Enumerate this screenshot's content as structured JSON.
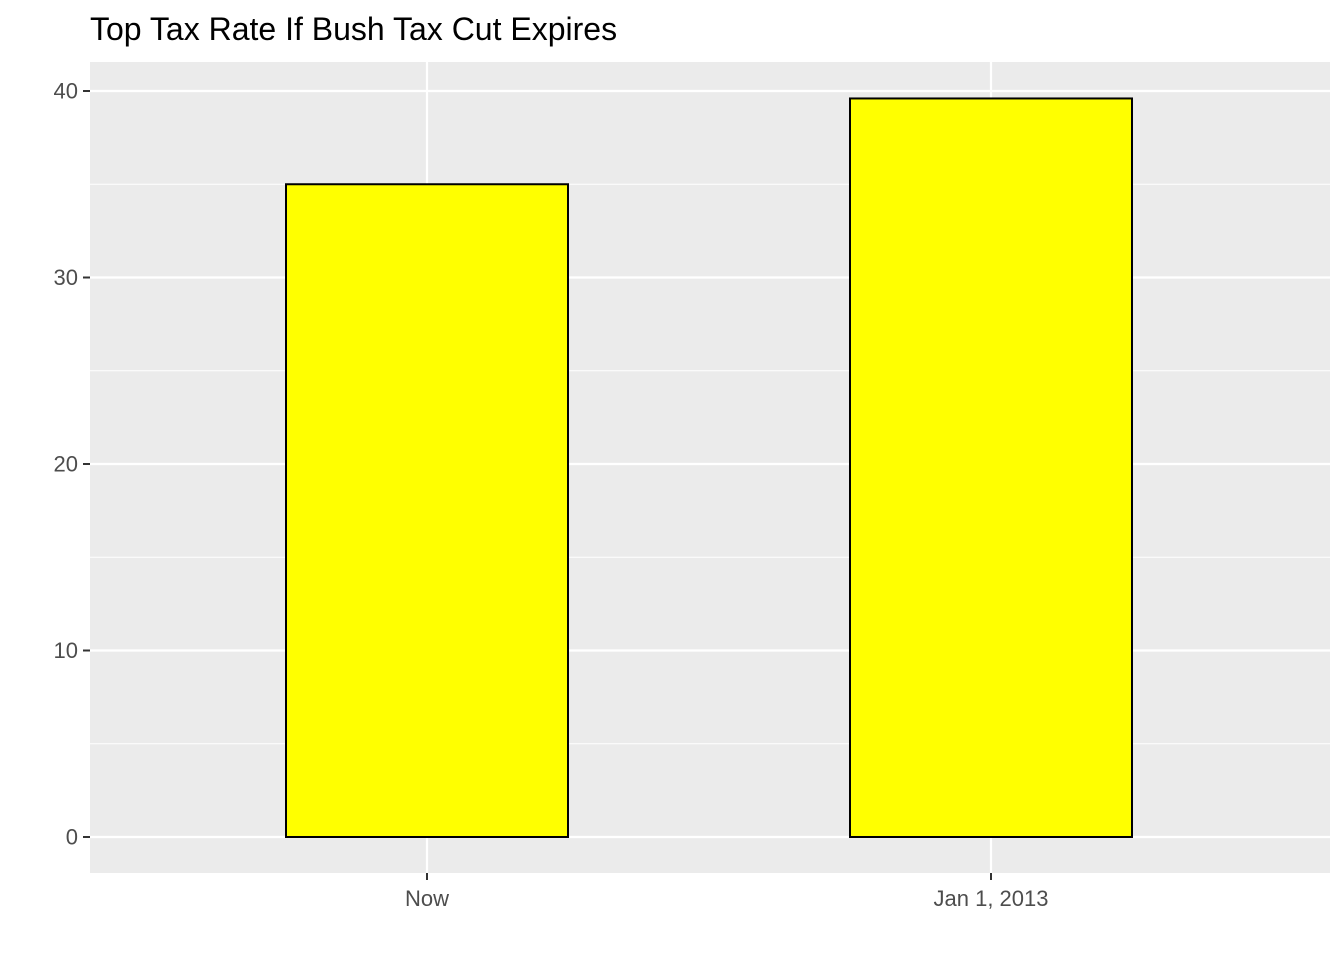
{
  "chart_data": {
    "type": "bar",
    "title": "Top Tax Rate If Bush Tax Cut Expires",
    "categories": [
      "Now",
      "Jan 1, 2013"
    ],
    "values": [
      35.0,
      39.6
    ],
    "xlabel": "",
    "ylabel": "",
    "ylim": [
      0,
      41.58
    ],
    "yticks": [
      0,
      10,
      20,
      30,
      40
    ],
    "ytick_labels": [
      "0",
      "10",
      "20",
      "30",
      "40"
    ],
    "grid": true,
    "legend": "none"
  },
  "colors": {
    "bar_fill": "#ffff00",
    "bar_stroke": "#000000",
    "panel_background": "#ebebeb",
    "grid_line": "#ffffff",
    "tick_text": "#4d4d4d",
    "title_text": "#000000"
  }
}
